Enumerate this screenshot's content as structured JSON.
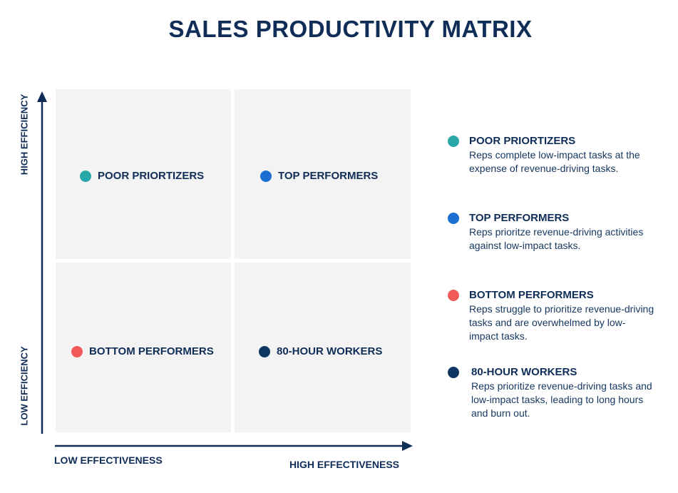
{
  "title": "SALES PRODUCTIVITY MATRIX",
  "axes": {
    "y_high": "HIGH EFFICIENCY",
    "y_low": "LOW EFFICIENCY",
    "x_low": "LOW EFFECTIVENESS",
    "x_high": "HIGH EFFECTIVENESS"
  },
  "quadrants": [
    {
      "label": "POOR PRIORTIZERS",
      "color": "#2aa7a9"
    },
    {
      "label": "TOP PERFORMERS",
      "color": "#1a6fd0"
    },
    {
      "label": "BOTTOM PERFORMERS",
      "color": "#f25a5a"
    },
    {
      "label": "80-HOUR WORKERS",
      "color": "#0f3561"
    }
  ],
  "legend": [
    {
      "heading": "POOR PRIORTIZERS",
      "description": "Reps complete low-impact tasks at the expense of revenue-driving tasks.",
      "color": "#2aa7a9"
    },
    {
      "heading": "TOP PERFORMERS",
      "description": "Reps prioritze revenue-driving activities against low-impact tasks.",
      "color": "#1a6fd0"
    },
    {
      "heading": "BOTTOM PERFORMERS",
      "description": "Reps struggle to prioritize revenue-driving tasks and are overwhelmed by low-impact tasks.",
      "color": "#f25a5a"
    },
    {
      "heading": "80-HOUR WORKERS",
      "description": "Reps prioritize revenue-driving tasks  and low-impact tasks, leading to long hours and burn out.",
      "color": "#0f3561"
    }
  ],
  "colors": {
    "navy": "#0f2d57",
    "quadrant_bg": "#f3f3f3"
  }
}
